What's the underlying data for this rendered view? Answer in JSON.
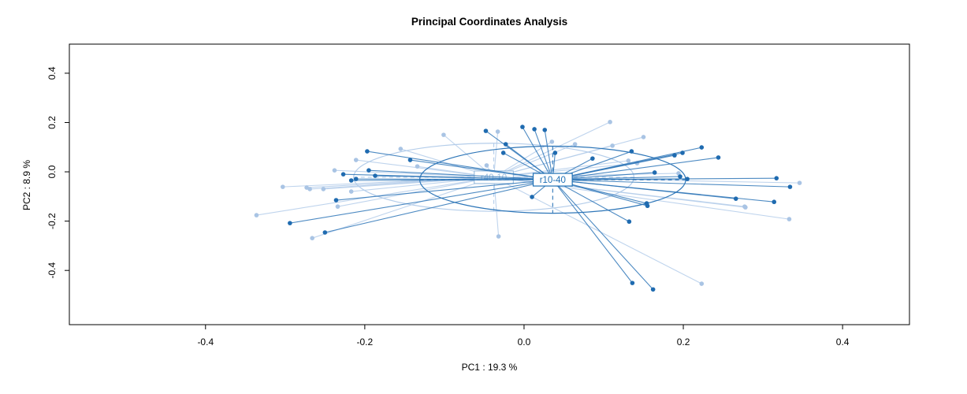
{
  "chart_data": {
    "type": "scatter",
    "title": "Principal Coordinates Analysis",
    "xlabel": "PC1 : 19.3 %",
    "ylabel": "PC2 : 8.9 %",
    "legend_position": "none",
    "grid": false,
    "x_axis": {
      "tick_labels": [
        "-0.4",
        "-0.2",
        "0.0",
        "0.2",
        "0.4"
      ],
      "tick_values": [
        -0.4,
        -0.2,
        0.0,
        0.2,
        0.4
      ],
      "range": [
        -0.571,
        0.484
      ]
    },
    "y_axis": {
      "tick_labels": [
        "-0.4",
        "-0.2",
        "0.0",
        "0.2",
        "0.4"
      ],
      "tick_values": [
        -0.4,
        -0.2,
        0.0,
        0.2,
        0.4
      ],
      "range": [
        -0.62,
        0.518
      ]
    },
    "groups": [
      {
        "name": "r40-10",
        "point_color": "#a9c4e4",
        "line_color": "#b4cdea",
        "label_color": "#9dbede",
        "centroid": [
          -0.038,
          -0.022
        ],
        "ellipse": {
          "rx": 0.176,
          "ry": 0.138
        },
        "points": [
          [
            -0.101,
            0.15
          ],
          [
            -0.155,
            0.093
          ],
          [
            -0.211,
            0.048
          ],
          [
            -0.134,
            0.022
          ],
          [
            -0.238,
            0.006
          ],
          [
            -0.303,
            -0.061
          ],
          [
            -0.273,
            -0.064
          ],
          [
            -0.269,
            -0.07
          ],
          [
            -0.252,
            -0.07
          ],
          [
            -0.217,
            -0.08
          ],
          [
            -0.234,
            -0.141
          ],
          [
            -0.336,
            -0.176
          ],
          [
            -0.266,
            -0.269
          ],
          [
            0.108,
            0.202
          ],
          [
            -0.033,
            0.163
          ],
          [
            0.035,
            0.122
          ],
          [
            0.064,
            0.112
          ],
          [
            0.111,
            0.106
          ],
          [
            0.15,
            0.141
          ],
          [
            -0.047,
            0.026
          ],
          [
            0.131,
            0.045
          ],
          [
            0.142,
            0.035
          ],
          [
            0.194,
            -0.006
          ],
          [
            0.346,
            -0.045
          ],
          [
            0.277,
            -0.141
          ],
          [
            0.278,
            -0.144
          ],
          [
            0.333,
            -0.192
          ],
          [
            0.223,
            -0.454
          ],
          [
            -0.032,
            -0.262
          ]
        ]
      },
      {
        "name": "r10-40",
        "point_color": "#1f6bb0",
        "line_color": "#2e76b8",
        "label_color": "#2171b5",
        "centroid": [
          0.036,
          -0.032
        ],
        "ellipse": {
          "rx": 0.167,
          "ry": 0.136
        },
        "points": [
          [
            -0.197,
            0.083
          ],
          [
            -0.143,
            0.048
          ],
          [
            -0.227,
            -0.01
          ],
          [
            -0.195,
            0.006
          ],
          [
            -0.187,
            -0.016
          ],
          [
            -0.217,
            -0.035
          ],
          [
            -0.211,
            -0.029
          ],
          [
            -0.236,
            -0.115
          ],
          [
            -0.294,
            -0.208
          ],
          [
            -0.25,
            -0.246
          ],
          [
            -0.048,
            0.166
          ],
          [
            -0.002,
            0.182
          ],
          [
            0.013,
            0.173
          ],
          [
            0.026,
            0.17
          ],
          [
            -0.023,
            0.112
          ],
          [
            -0.026,
            0.077
          ],
          [
            0.039,
            0.077
          ],
          [
            0.086,
            0.054
          ],
          [
            0.135,
            0.083
          ],
          [
            0.164,
            -0.003
          ],
          [
            0.01,
            -0.102
          ],
          [
            0.154,
            -0.128
          ],
          [
            0.155,
            -0.138
          ],
          [
            0.223,
            0.099
          ],
          [
            0.199,
            0.077
          ],
          [
            0.189,
            0.067
          ],
          [
            0.244,
            0.058
          ],
          [
            0.196,
            -0.019
          ],
          [
            0.205,
            -0.029
          ],
          [
            0.317,
            -0.026
          ],
          [
            0.334,
            -0.061
          ],
          [
            0.266,
            -0.109
          ],
          [
            0.314,
            -0.122
          ],
          [
            0.132,
            -0.202
          ],
          [
            0.136,
            -0.451
          ],
          [
            0.162,
            -0.477
          ]
        ]
      }
    ]
  }
}
